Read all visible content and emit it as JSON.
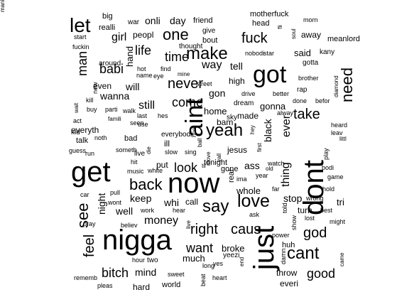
{
  "words": [
    {
      "text": "nigga",
      "size": 40,
      "rot": 0
    },
    {
      "text": "get",
      "size": 40,
      "rot": 0
    },
    {
      "text": "now",
      "size": 40,
      "rot": 0
    },
    {
      "text": "dont",
      "size": 40,
      "rot": -90
    },
    {
      "text": "just",
      "size": 40,
      "rot": -90
    },
    {
      "text": "got",
      "size": 34,
      "rot": 0
    },
    {
      "text": "aint",
      "size": 34,
      "rot": -90
    },
    {
      "text": "love",
      "size": 25,
      "rot": 0
    },
    {
      "text": "make",
      "size": 24,
      "rot": 0
    },
    {
      "text": "yeah",
      "size": 24,
      "rot": 0
    },
    {
      "text": "say",
      "size": 24,
      "rot": 0
    },
    {
      "text": "let",
      "size": 28,
      "rot": 0
    },
    {
      "text": "cant",
      "size": 24,
      "rot": 0
    },
    {
      "text": "back",
      "size": 22,
      "rot": 0
    },
    {
      "text": "take",
      "size": 20,
      "rot": 0
    },
    {
      "text": "need",
      "size": 22,
      "rot": -90
    },
    {
      "text": "one",
      "size": 22,
      "rot": 0
    },
    {
      "text": "fuck",
      "size": 20,
      "rot": 0
    },
    {
      "text": "never",
      "size": 20,
      "rot": 0
    },
    {
      "text": "right",
      "size": 20,
      "rot": 0
    },
    {
      "text": "caus",
      "size": 20,
      "rot": 0
    },
    {
      "text": "god",
      "size": 20,
      "rot": 0
    },
    {
      "text": "see",
      "size": 22,
      "rot": -90
    },
    {
      "text": "feel",
      "size": 20,
      "rot": -90
    },
    {
      "text": "bitch",
      "size": 18,
      "rot": 0
    },
    {
      "text": "want",
      "size": 18,
      "rot": 0
    },
    {
      "text": "good",
      "size": 18,
      "rot": 0
    },
    {
      "text": "look",
      "size": 18,
      "rot": 0
    },
    {
      "text": "come",
      "size": 18,
      "rot": 0
    },
    {
      "text": "time",
      "size": 18,
      "rot": 0
    },
    {
      "text": "man",
      "size": 18,
      "rot": -90
    },
    {
      "text": "babi",
      "size": 18,
      "rot": 0
    },
    {
      "text": "life",
      "size": 18,
      "rot": 0
    },
    {
      "text": "way",
      "size": 16,
      "rot": 0
    },
    {
      "text": "money",
      "size": 16,
      "rot": 0
    },
    {
      "text": "thing",
      "size": 16,
      "rot": -90
    },
    {
      "text": "ever",
      "size": 16,
      "rot": -90
    },
    {
      "text": "black",
      "size": 14,
      "rot": -90
    },
    {
      "text": "girl",
      "size": 16,
      "rot": 0
    },
    {
      "text": "wanna",
      "size": 14,
      "rot": 0
    },
    {
      "text": "still",
      "size": 16,
      "rot": 0
    },
    {
      "text": "well",
      "size": 14,
      "rot": 0
    },
    {
      "text": "keep",
      "size": 14,
      "rot": 0
    },
    {
      "text": "night",
      "size": 14,
      "rot": -90
    },
    {
      "text": "mind",
      "size": 14,
      "rot": 0
    },
    {
      "text": "tell",
      "size": 14,
      "rot": 0
    },
    {
      "text": "gon",
      "size": 14,
      "rot": 0
    },
    {
      "text": "will",
      "size": 14,
      "rot": 0
    },
    {
      "text": "stop",
      "size": 14,
      "rot": 0
    },
    {
      "text": "much",
      "size": 13,
      "rot": 0
    },
    {
      "text": "onli",
      "size": 14,
      "rot": 0
    },
    {
      "text": "day",
      "size": 14,
      "rot": 0
    },
    {
      "text": "said",
      "size": 13,
      "rot": 0
    },
    {
      "text": "whi",
      "size": 14,
      "rot": 0
    },
    {
      "text": "hand",
      "size": 13,
      "rot": -90
    },
    {
      "text": "home",
      "size": 13,
      "rot": 0
    },
    {
      "text": "whole",
      "size": 13,
      "rot": 0
    },
    {
      "text": "ass",
      "size": 14,
      "rot": 0
    },
    {
      "text": "gonna",
      "size": 13,
      "rot": 0
    },
    {
      "text": "turn",
      "size": 12,
      "rot": 0
    },
    {
      "text": "tri",
      "size": 13,
      "rot": 0
    },
    {
      "text": "throw",
      "size": 12,
      "rot": 0
    },
    {
      "text": "broke",
      "size": 13,
      "rot": 0
    },
    {
      "text": "call",
      "size": 12,
      "rot": 0
    },
    {
      "text": "high",
      "size": 12,
      "rot": 0
    },
    {
      "text": "away",
      "size": 12,
      "rot": 0
    },
    {
      "text": "even",
      "size": 12,
      "rot": 0
    },
    {
      "text": "everyth",
      "size": 12,
      "rot": 0
    },
    {
      "text": "jesus",
      "size": 12,
      "rot": 0
    },
    {
      "text": "made",
      "size": 12,
      "rot": 0
    },
    {
      "text": "bam",
      "size": 12,
      "rot": 0
    },
    {
      "text": "peopl",
      "size": 12,
      "rot": 0
    },
    {
      "text": "put",
      "size": 12,
      "rot": 0
    },
    {
      "text": "ill",
      "size": 12,
      "rot": 0
    },
    {
      "text": "hard",
      "size": 12,
      "rot": 0
    },
    {
      "text": "world",
      "size": 11,
      "rot": 0
    },
    {
      "text": "everi",
      "size": 12,
      "rot": 0
    },
    {
      "text": "huh",
      "size": 11,
      "rot": 0
    },
    {
      "text": "bad",
      "size": 11,
      "rot": 0
    },
    {
      "text": "real",
      "size": 11,
      "rot": -90
    },
    {
      "text": "gone",
      "size": 11,
      "rot": 0
    },
    {
      "text": "tonight",
      "size": 11,
      "rot": 0
    },
    {
      "text": "head",
      "size": 11,
      "rot": 0
    },
    {
      "text": "war",
      "size": 10,
      "rot": 0
    },
    {
      "text": "big",
      "size": 11,
      "rot": 0
    },
    {
      "text": "friend",
      "size": 11,
      "rot": 0
    },
    {
      "text": "motherfuck",
      "size": 11,
      "rot": 0
    },
    {
      "text": "morn",
      "size": 9,
      "rot": 0
    },
    {
      "text": "meanlord",
      "size": 11,
      "rot": 0
    },
    {
      "text": "kany",
      "size": 10,
      "rot": 0
    },
    {
      "text": "gotta",
      "size": 10,
      "rot": 0
    },
    {
      "text": "brother",
      "size": 9,
      "rot": 0
    },
    {
      "text": "rap",
      "size": 10,
      "rot": 0
    },
    {
      "text": "done",
      "size": 9,
      "rot": 0
    },
    {
      "text": "befor",
      "size": 9,
      "rot": 0
    },
    {
      "text": "drive",
      "size": 9,
      "rot": 0
    },
    {
      "text": "better",
      "size": 9,
      "rot": 0
    },
    {
      "text": "nobodi",
      "size": 9,
      "rot": 0
    },
    {
      "text": "star",
      "size": 9,
      "rot": 0
    },
    {
      "text": "give",
      "size": 10,
      "rot": 0
    },
    {
      "text": "bout",
      "size": 11,
      "rot": 0
    },
    {
      "text": "thought",
      "size": 10,
      "rot": 0
    },
    {
      "text": "fuckin",
      "size": 9,
      "rot": 0
    },
    {
      "text": "start",
      "size": 9,
      "rot": 0
    },
    {
      "text": "around",
      "size": 10,
      "rot": 0
    },
    {
      "text": "realli",
      "size": 11,
      "rot": 0
    },
    {
      "text": "hot",
      "size": 9,
      "rot": 0
    },
    {
      "text": "find",
      "size": 9,
      "rot": 0
    },
    {
      "text": "name",
      "size": 9,
      "rot": 0
    },
    {
      "text": "eye",
      "size": 9,
      "rot": 0
    },
    {
      "text": "mine",
      "size": 8,
      "rot": 0
    },
    {
      "text": "street",
      "size": 9,
      "rot": 0
    },
    {
      "text": "dream",
      "size": 10,
      "rot": 0
    },
    {
      "text": "alway",
      "size": 9,
      "rot": 0
    },
    {
      "text": "sky",
      "size": 10,
      "rot": 0
    },
    {
      "text": "kill",
      "size": 9,
      "rot": 0
    },
    {
      "text": "buy",
      "size": 9,
      "rot": 0
    },
    {
      "text": "parti",
      "size": 9,
      "rot": 0
    },
    {
      "text": "walk",
      "size": 9,
      "rot": 0
    },
    {
      "text": "last",
      "size": 9,
      "rot": 0
    },
    {
      "text": "hes",
      "size": 9,
      "rot": 0
    },
    {
      "text": "act",
      "size": 9,
      "rot": 0
    },
    {
      "text": "famili",
      "size": 8,
      "rot": 0
    },
    {
      "text": "use",
      "size": 9,
      "rot": 0
    },
    {
      "text": "seen",
      "size": 9,
      "rot": 0
    },
    {
      "text": "everybodi",
      "size": 10,
      "rot": 0
    },
    {
      "text": "kid",
      "size": 10,
      "rot": 0
    },
    {
      "text": "talk",
      "size": 11,
      "rot": 0
    },
    {
      "text": "noth",
      "size": 9,
      "rot": 0
    },
    {
      "text": "guess",
      "size": 9,
      "rot": 0
    },
    {
      "text": "run",
      "size": 9,
      "rot": 0
    },
    {
      "text": "someth",
      "size": 9,
      "rot": 0
    },
    {
      "text": "live",
      "size": 10,
      "rot": 0
    },
    {
      "text": "slow",
      "size": 9,
      "rot": 0
    },
    {
      "text": "sing",
      "size": 9,
      "rot": 0
    },
    {
      "text": "hit",
      "size": 9,
      "rot": 0
    },
    {
      "text": "music",
      "size": 9,
      "rot": 0
    },
    {
      "text": "white",
      "size": 9,
      "rot": 0
    },
    {
      "text": "til",
      "size": 8,
      "rot": 0
    },
    {
      "text": "ima",
      "size": 9,
      "rot": 0
    },
    {
      "text": "year",
      "size": 9,
      "rot": 0
    },
    {
      "text": "watch",
      "size": 9,
      "rot": 0
    },
    {
      "text": "old",
      "size": 8,
      "rot": 0
    },
    {
      "text": "far",
      "size": 9,
      "rot": 0
    },
    {
      "text": "bodi",
      "size": 9,
      "rot": 0
    },
    {
      "text": "game",
      "size": 9,
      "rot": 0
    },
    {
      "text": "hold",
      "size": 9,
      "rot": 0
    },
    {
      "text": "wrong",
      "size": 9,
      "rot": 0
    },
    {
      "text": "best",
      "size": 9,
      "rot": 0
    },
    {
      "text": "lost",
      "size": 9,
      "rot": 0
    },
    {
      "text": "might",
      "size": 9,
      "rot": 0
    },
    {
      "text": "ask",
      "size": 9,
      "rot": 0
    },
    {
      "text": "power",
      "size": 9,
      "rot": 0
    },
    {
      "text": "car",
      "size": 9,
      "rot": 0
    },
    {
      "text": "pull",
      "size": 9,
      "rot": 0
    },
    {
      "text": "wont",
      "size": 9,
      "rot": 0
    },
    {
      "text": "work",
      "size": 9,
      "rot": 0
    },
    {
      "text": "hear",
      "size": 9,
      "rot": 0
    },
    {
      "text": "pray",
      "size": 9,
      "rot": 0
    },
    {
      "text": "believ",
      "size": 9,
      "rot": 0
    },
    {
      "text": "hour",
      "size": 9,
      "rot": 0
    },
    {
      "text": "two",
      "size": 10,
      "rot": 0
    },
    {
      "text": "yeezi",
      "size": 10,
      "rot": 0
    },
    {
      "text": "yes",
      "size": 9,
      "rot": 0
    },
    {
      "text": "long",
      "size": 9,
      "rot": 0
    },
    {
      "text": "heart",
      "size": 9,
      "rot": 0
    },
    {
      "text": "sweet",
      "size": 9,
      "rot": 0
    },
    {
      "text": "rememb",
      "size": 9,
      "rot": 0
    },
    {
      "text": "pleas",
      "size": 9,
      "rot": 0
    },
    {
      "text": "heard",
      "size": 9,
      "rot": 0
    },
    {
      "text": "leav",
      "size": 9,
      "rot": 0
    },
    {
      "text": "littl",
      "size": 8,
      "rot": 0
    },
    {
      "text": "play",
      "size": 9,
      "rot": -90
    },
    {
      "text": "came",
      "size": 8,
      "rot": -90
    },
    {
      "text": "told",
      "size": 9,
      "rot": -90
    },
    {
      "text": "show",
      "size": 9,
      "rot": -90
    },
    {
      "text": "damn",
      "size": 9,
      "rot": -90
    },
    {
      "text": "end",
      "size": 8,
      "rot": -90
    },
    {
      "text": "beat",
      "size": 9,
      "rot": -90
    },
    {
      "text": "live",
      "size": 8,
      "rot": -90
    },
    {
      "text": "wait",
      "size": 8,
      "rot": -90
    },
    {
      "text": "new",
      "size": 9,
      "rot": -90
    },
    {
      "text": "die",
      "size": 8,
      "rot": -90
    },
    {
      "text": "ball",
      "size": 8,
      "rot": -90
    },
    {
      "text": "move",
      "size": 8,
      "rot": -90
    },
    {
      "text": "yall",
      "size": 8,
      "rot": -90
    },
    {
      "text": "hey",
      "size": 8,
      "rot": -90
    },
    {
      "text": "first",
      "size": 8,
      "rot": -90
    },
    {
      "text": "hoe",
      "size": 8,
      "rot": -90
    },
    {
      "text": "fli",
      "size": 8,
      "rot": -90
    },
    {
      "text": "soul",
      "size": 8,
      "rot": -90
    },
    {
      "text": "diamond",
      "size": 8,
      "rot": -90
    },
    {
      "text": "mani",
      "size": 8,
      "rot": -90
    }
  ]
}
